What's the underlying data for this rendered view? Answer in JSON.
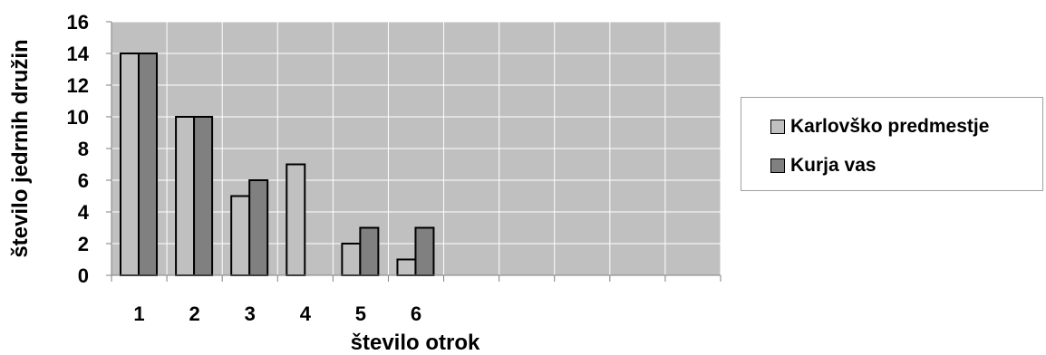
{
  "chart_data": {
    "type": "bar",
    "categories": [
      "1",
      "2",
      "3",
      "4",
      "5",
      "6",
      "",
      "",
      "",
      "",
      ""
    ],
    "series": [
      {
        "name": "Karlovško predmestje",
        "values": [
          14,
          10,
          5,
          7,
          2,
          1,
          null,
          null,
          null,
          null,
          null
        ],
        "color": "#c0c0c0"
      },
      {
        "name": "Kurja vas",
        "values": [
          14,
          10,
          6,
          0,
          3,
          3,
          null,
          null,
          null,
          null,
          null
        ],
        "color": "#808080"
      }
    ],
    "xlabel": "število otrok",
    "ylabel": "število jedrnih družin",
    "ylim": [
      0,
      16
    ],
    "yticks": [
      "0",
      "2",
      "4",
      "6",
      "8",
      "10",
      "12",
      "14",
      "16"
    ],
    "grid": true,
    "plot_background": "#c0c0c0",
    "gridline_color": "#ffffff",
    "legend_position": "right"
  }
}
